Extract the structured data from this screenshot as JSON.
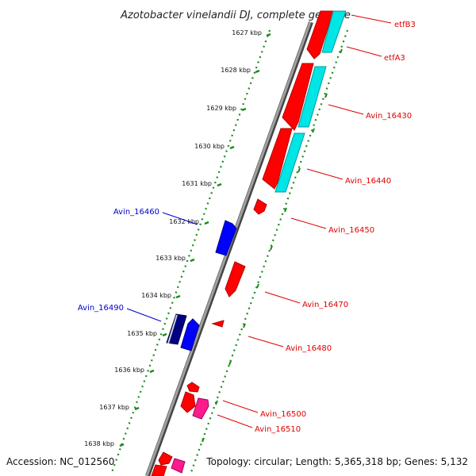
{
  "title": "Azotobacter vinelandii DJ, complete genome",
  "accession": "Accession: NC_012560",
  "summary": "Topology: circular; Length: 5,365,318 bp; Genes: 5,132",
  "colors": {
    "backbone": "#888888",
    "ticks": "#1a7a1a",
    "gene_red": "#ff0000",
    "gene_cyan": "#00e5e5",
    "gene_blue": "#0000ff",
    "gene_pink": "#ff1a8c",
    "gene_navy": "#000080",
    "label_red": "#e00000",
    "label_blue": "#0000cc"
  },
  "ticks": [
    "1627 kbp",
    "1628 kbp",
    "1629 kbp",
    "1630 kbp",
    "1631 kbp",
    "1632 kbp",
    "1633 kbp",
    "1634 kbp",
    "1635 kbp",
    "1636 kbp",
    "1637 kbp",
    "1638 kbp"
  ],
  "gene_labels": [
    {
      "text": "etfB3",
      "color": "red"
    },
    {
      "text": "etfA3",
      "color": "red"
    },
    {
      "text": "Avin_16430",
      "color": "red"
    },
    {
      "text": "Avin_16440",
      "color": "red"
    },
    {
      "text": "Avin_16450",
      "color": "red"
    },
    {
      "text": "Avin_16460",
      "color": "blue"
    },
    {
      "text": "Avin_16470",
      "color": "red"
    },
    {
      "text": "Avin_16480",
      "color": "red"
    },
    {
      "text": "Avin_16490",
      "color": "blue"
    },
    {
      "text": "Avin_16500",
      "color": "red"
    },
    {
      "text": "Avin_16510",
      "color": "red"
    }
  ]
}
